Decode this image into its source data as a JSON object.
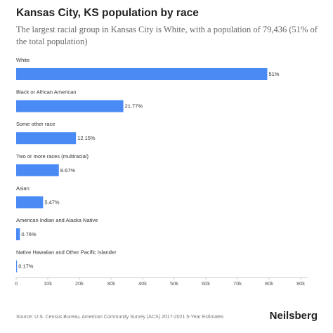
{
  "chart_data": {
    "type": "hbar",
    "title": "Kansas City, KS population by race",
    "subtitle": "The largest racial group in Kansas City is White, with a population of 79,436 (51% of the total population)",
    "categories": [
      "White",
      "Black or African American",
      "Some other race",
      "Two or more races (multiracial)",
      "Asian",
      "American Indian and Alaska Native",
      "Native Hawaiian and Other Pacific Islander"
    ],
    "values": [
      79436,
      33908,
      18925,
      13504,
      8520,
      1184,
      265
    ],
    "value_labels": [
      "51%",
      "21.77%",
      "12.15%",
      "8.67%",
      "5.47%",
      "0.76%",
      "0.17%"
    ],
    "color": "#4a8af4",
    "xlim": [
      0,
      90000
    ],
    "xticks": [
      0,
      {
        "value": 10000,
        "label": "10k"
      },
      {
        "value": 20000,
        "label": "20k"
      },
      {
        "value": 30000,
        "label": "30k"
      },
      {
        "value": 40000,
        "label": "40k"
      },
      {
        "value": 50000,
        "label": "50k"
      },
      {
        "value": 60000,
        "label": "60k"
      },
      {
        "value": 70000,
        "label": "70k"
      },
      {
        "value": 80000,
        "label": "80k"
      },
      {
        "value": 90000,
        "label": "90k"
      }
    ],
    "grid": false,
    "source": "Source: U.S. Census Bureau, American Community Survey (ACS) 2017-2021 5-Year Estimates",
    "logo": "Neilsberg"
  }
}
